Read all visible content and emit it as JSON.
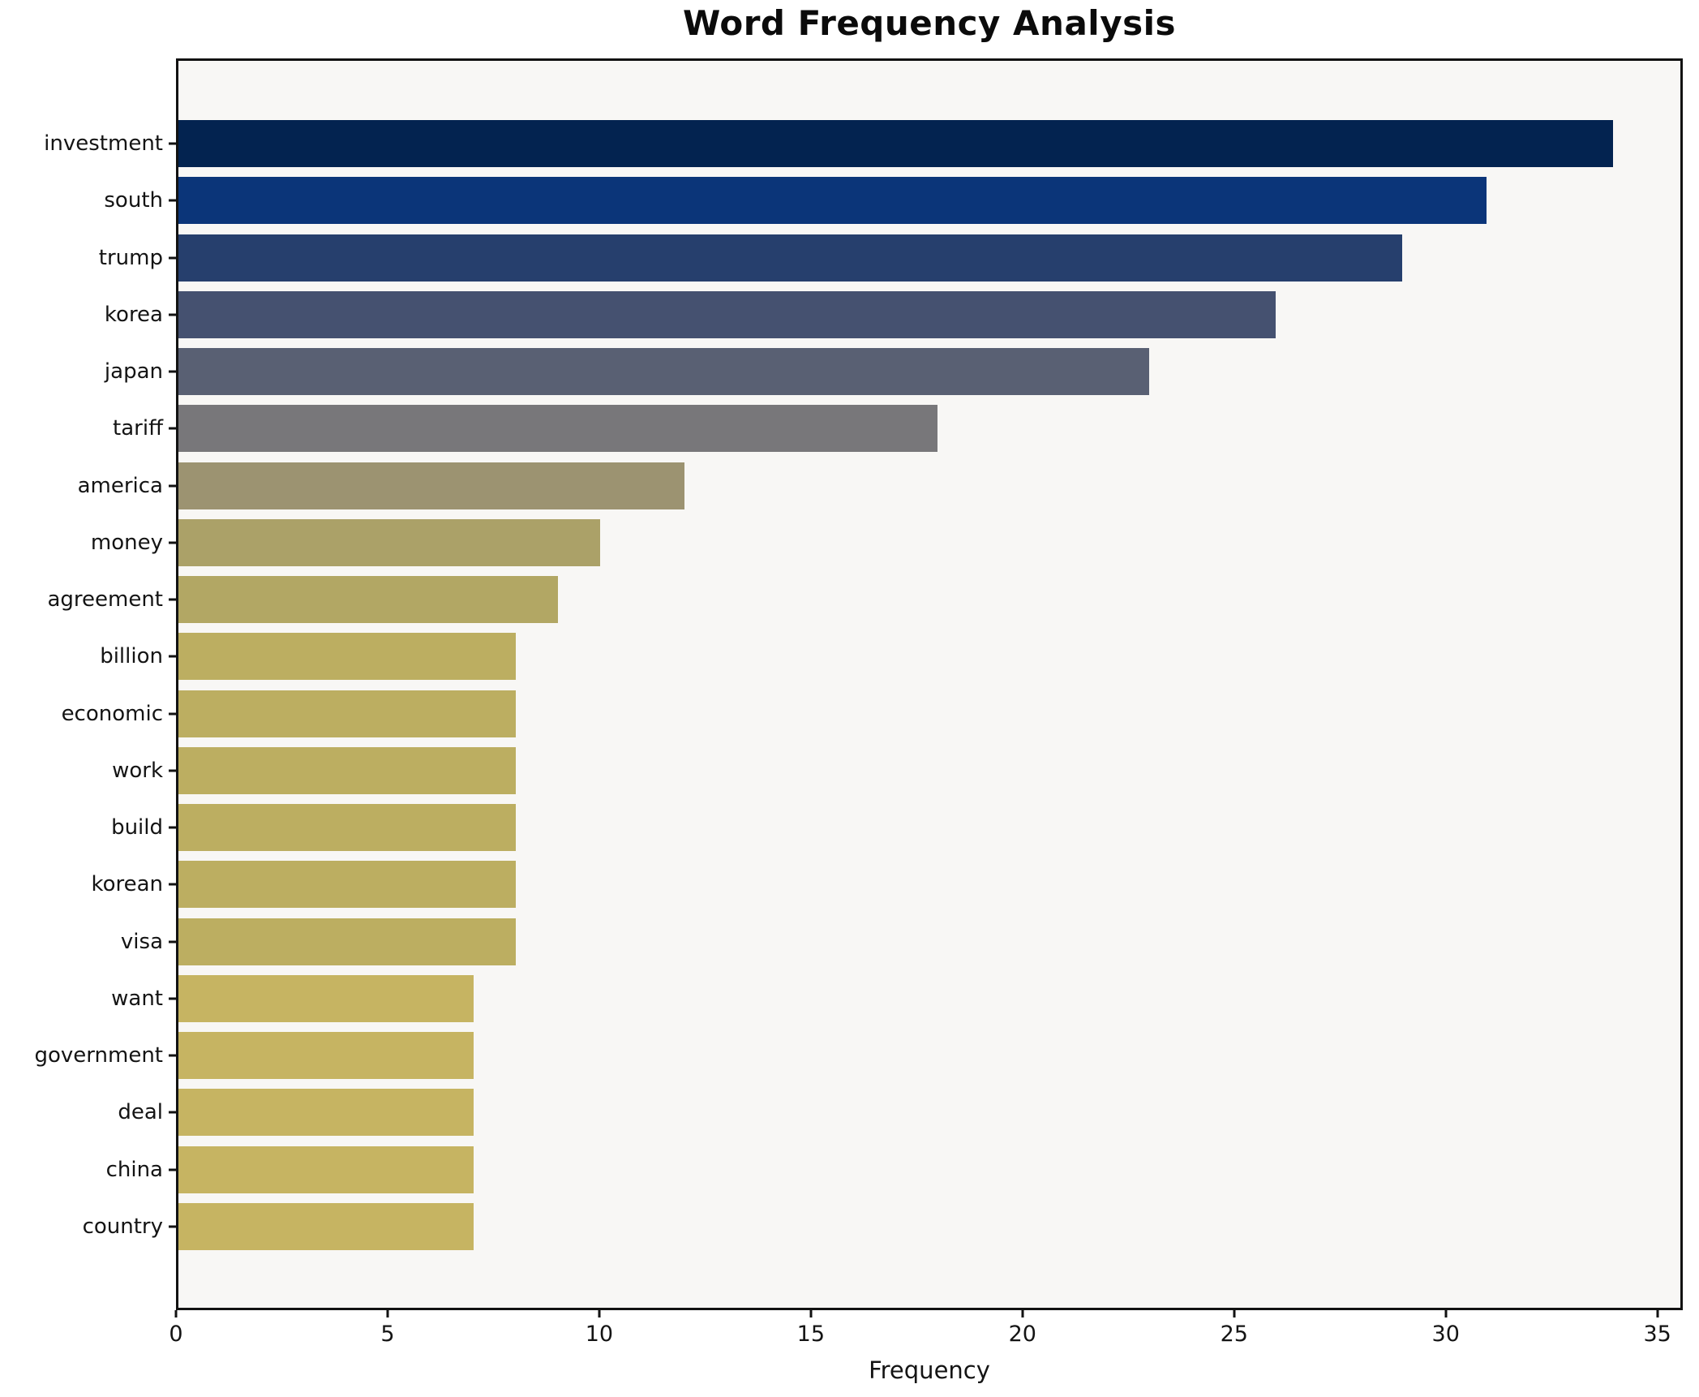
{
  "title": "Word Frequency Analysis",
  "axis": {
    "xlabel": "Frequency"
  },
  "colors": {
    "figure_bg": "#ffffff",
    "plot_bg": "#f8f7f5",
    "spine": "#121212",
    "text": "#141414"
  },
  "chart_data": {
    "type": "bar",
    "orientation": "horizontal",
    "title": "Word Frequency Analysis",
    "xlabel": "Frequency",
    "ylabel": "",
    "grid": false,
    "legend": false,
    "xlim": [
      0,
      35.6
    ],
    "xticks": [
      0,
      5,
      10,
      15,
      20,
      25,
      30,
      35
    ],
    "categories": [
      "investment",
      "south",
      "trump",
      "korea",
      "japan",
      "tariff",
      "america",
      "money",
      "agreement",
      "billion",
      "economic",
      "work",
      "build",
      "korean",
      "visa",
      "want",
      "government",
      "deal",
      "china",
      "country"
    ],
    "values": [
      34,
      31,
      29,
      26,
      23,
      18,
      12,
      10,
      9,
      8,
      8,
      8,
      8,
      8,
      8,
      7,
      7,
      7,
      7,
      7
    ],
    "bar_colors": [
      "#032350",
      "#0b3579",
      "#263f6d",
      "#455170",
      "#596073",
      "#78777a",
      "#9c9371",
      "#aba168",
      "#b2a764",
      "#bcae61",
      "#bcae61",
      "#bcae61",
      "#bcae61",
      "#bcae61",
      "#bcae61",
      "#c6b462",
      "#c6b462",
      "#c6b462",
      "#c6b462",
      "#c6b462"
    ]
  }
}
